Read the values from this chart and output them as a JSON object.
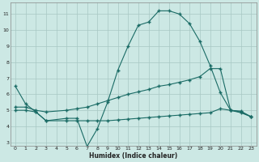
{
  "title": "",
  "xlabel": "Humidex (Indice chaleur)",
  "background_color": "#cce8e4",
  "grid_color": "#a8c8c4",
  "line_color": "#1a6b65",
  "xlim": [
    -0.5,
    23.5
  ],
  "ylim": [
    2.8,
    11.7
  ],
  "yticks": [
    3,
    4,
    5,
    6,
    7,
    8,
    9,
    10,
    11
  ],
  "xticks": [
    0,
    1,
    2,
    3,
    4,
    5,
    6,
    7,
    8,
    9,
    10,
    11,
    12,
    13,
    14,
    15,
    16,
    17,
    18,
    19,
    20,
    21,
    22,
    23
  ],
  "series": [
    {
      "x": [
        0,
        1,
        2,
        3,
        5,
        6,
        7,
        8,
        9,
        10,
        11,
        12,
        13,
        14,
        15,
        16,
        17,
        18,
        19,
        20,
        21,
        22,
        23
      ],
      "y": [
        6.5,
        5.4,
        4.9,
        4.35,
        4.5,
        4.5,
        2.75,
        3.85,
        5.5,
        7.5,
        9.0,
        10.3,
        10.5,
        11.2,
        11.2,
        11.0,
        10.4,
        9.3,
        7.8,
        6.1,
        5.0,
        4.95,
        4.6
      ]
    },
    {
      "x": [
        0,
        1,
        2,
        3,
        5,
        6,
        7,
        8,
        9,
        10,
        11,
        12,
        13,
        14,
        15,
        16,
        17,
        18,
        19,
        20,
        21,
        22,
        23
      ],
      "y": [
        5.2,
        5.2,
        5.0,
        4.9,
        5.0,
        5.1,
        5.2,
        5.4,
        5.6,
        5.8,
        6.0,
        6.15,
        6.3,
        6.5,
        6.6,
        6.75,
        6.9,
        7.1,
        7.6,
        7.6,
        5.0,
        4.9,
        4.6
      ]
    },
    {
      "x": [
        0,
        1,
        2,
        3,
        5,
        6,
        7,
        8,
        9,
        10,
        11,
        12,
        13,
        14,
        15,
        16,
        17,
        18,
        19,
        20,
        21,
        22,
        23
      ],
      "y": [
        5.0,
        5.0,
        4.9,
        4.35,
        4.35,
        4.35,
        4.35,
        4.35,
        4.35,
        4.4,
        4.45,
        4.5,
        4.55,
        4.6,
        4.65,
        4.7,
        4.75,
        4.8,
        4.85,
        5.1,
        5.0,
        4.85,
        4.6
      ]
    }
  ]
}
